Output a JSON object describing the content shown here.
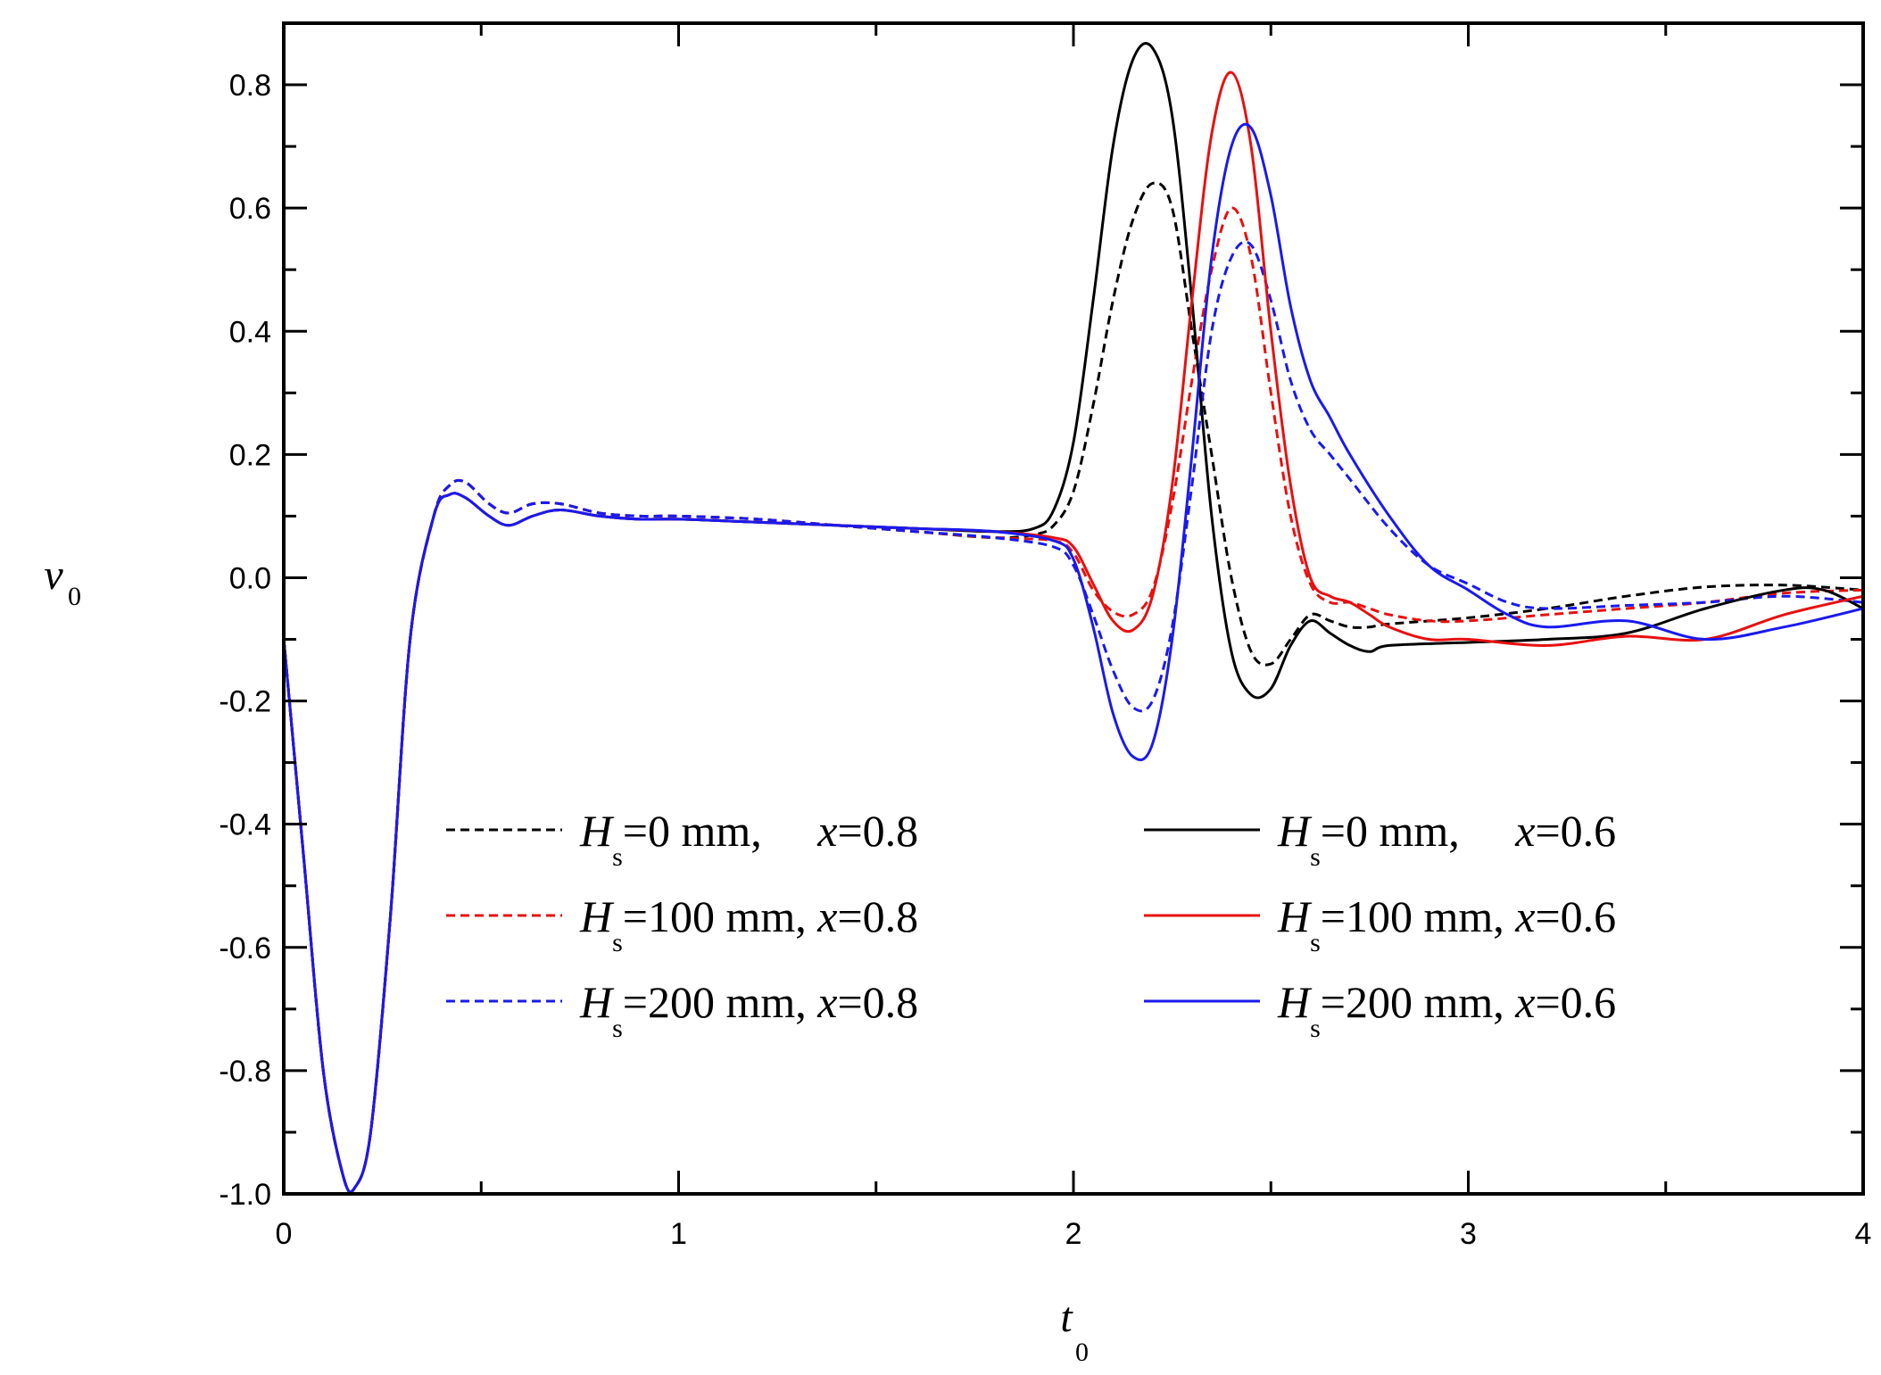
{
  "chart_data": {
    "type": "line",
    "title": "",
    "xlabel": "t",
    "xlabel_sub": "0",
    "ylabel": "v",
    "ylabel_sub": "0",
    "xlim": [
      0,
      4
    ],
    "ylim": [
      -1.0,
      0.9
    ],
    "x_ticks": [
      0,
      1,
      2,
      3,
      4
    ],
    "x_tick_labels": [
      "0",
      "1",
      "2",
      "3",
      "4"
    ],
    "y_ticks": [
      -1.0,
      -0.8,
      -0.6,
      -0.4,
      -0.2,
      0.0,
      0.2,
      0.4,
      0.6,
      0.8
    ],
    "y_tick_labels": [
      "-1.0",
      "-0.8",
      "-0.6",
      "-0.4",
      "-0.2",
      "0.0",
      "0.2",
      "0.4",
      "0.6",
      "0.8"
    ],
    "grid": false,
    "legend_position": "bottom-center",
    "series": [
      {
        "name": "Hs=0 mm, x=0.8",
        "legend": {
          "pre": "H",
          "sub": "s",
          "mid": "=0 mm, ",
          "var": "x",
          "post": "=0.8"
        },
        "color": "#000000",
        "dashed": true,
        "x": [
          0,
          0.05,
          0.1,
          0.15,
          0.18,
          0.22,
          0.27,
          0.32,
          0.38,
          0.42,
          0.46,
          0.52,
          0.57,
          0.63,
          0.7,
          0.8,
          0.9,
          1.0,
          1.2,
          1.4,
          1.6,
          1.8,
          1.9,
          1.95,
          2.0,
          2.05,
          2.1,
          2.15,
          2.2,
          2.25,
          2.3,
          2.35,
          2.4,
          2.45,
          2.5,
          2.55,
          2.6,
          2.65,
          2.7,
          2.75,
          2.8,
          3.0,
          3.2,
          3.4,
          3.6,
          3.8,
          4.0
        ],
        "y": [
          -0.1,
          -0.45,
          -0.8,
          -0.97,
          -0.99,
          -0.9,
          -0.55,
          -0.1,
          0.1,
          0.15,
          0.155,
          0.12,
          0.105,
          0.12,
          0.12,
          0.105,
          0.1,
          0.1,
          0.095,
          0.085,
          0.075,
          0.065,
          0.07,
          0.085,
          0.14,
          0.28,
          0.45,
          0.58,
          0.64,
          0.6,
          0.4,
          0.2,
          0.0,
          -0.12,
          -0.14,
          -0.1,
          -0.06,
          -0.07,
          -0.08,
          -0.08,
          -0.075,
          -0.065,
          -0.05,
          -0.03,
          -0.015,
          -0.012,
          -0.02
        ]
      },
      {
        "name": "Hs=100 mm, x=0.8",
        "legend": {
          "pre": "H",
          "sub": "s",
          "mid": "=100 mm, ",
          "var": "x",
          "post": "=0.8"
        },
        "color": "#e81010",
        "dashed": true,
        "x": [
          0,
          0.05,
          0.1,
          0.15,
          0.18,
          0.22,
          0.27,
          0.32,
          0.38,
          0.42,
          0.46,
          0.52,
          0.57,
          0.63,
          0.7,
          0.8,
          0.9,
          1.0,
          1.2,
          1.4,
          1.6,
          1.8,
          1.95,
          2.0,
          2.05,
          2.1,
          2.15,
          2.2,
          2.25,
          2.3,
          2.35,
          2.4,
          2.45,
          2.5,
          2.55,
          2.6,
          2.65,
          2.7,
          2.75,
          2.8,
          2.9,
          3.0,
          3.2,
          3.4,
          3.6,
          3.8,
          4.0
        ],
        "y": [
          -0.1,
          -0.45,
          -0.8,
          -0.97,
          -0.99,
          -0.9,
          -0.55,
          -0.1,
          0.1,
          0.15,
          0.155,
          0.12,
          0.105,
          0.12,
          0.12,
          0.105,
          0.1,
          0.1,
          0.095,
          0.085,
          0.075,
          0.065,
          0.06,
          0.04,
          -0.02,
          -0.055,
          -0.06,
          -0.02,
          0.12,
          0.32,
          0.5,
          0.6,
          0.52,
          0.3,
          0.1,
          -0.01,
          -0.04,
          -0.04,
          -0.05,
          -0.06,
          -0.07,
          -0.07,
          -0.06,
          -0.05,
          -0.04,
          -0.025,
          -0.02
        ]
      },
      {
        "name": "Hs=200 mm, x=0.8",
        "legend": {
          "pre": "H",
          "sub": "s",
          "mid": "=200 mm, ",
          "var": "x",
          "post": "=0.8"
        },
        "color": "#1a1aee",
        "dashed": true,
        "x": [
          0,
          0.05,
          0.1,
          0.15,
          0.18,
          0.22,
          0.27,
          0.32,
          0.38,
          0.42,
          0.46,
          0.52,
          0.57,
          0.63,
          0.7,
          0.8,
          0.9,
          1.0,
          1.2,
          1.4,
          1.6,
          1.8,
          1.95,
          2.0,
          2.05,
          2.1,
          2.15,
          2.2,
          2.25,
          2.3,
          2.35,
          2.4,
          2.45,
          2.5,
          2.55,
          2.6,
          2.65,
          2.7,
          2.8,
          2.9,
          3.0,
          3.1,
          3.2,
          3.4,
          3.6,
          3.8,
          4.0
        ],
        "y": [
          -0.1,
          -0.45,
          -0.8,
          -0.97,
          -0.99,
          -0.9,
          -0.55,
          -0.1,
          0.1,
          0.15,
          0.155,
          0.12,
          0.105,
          0.12,
          0.12,
          0.105,
          0.1,
          0.1,
          0.095,
          0.085,
          0.075,
          0.065,
          0.05,
          0.02,
          -0.06,
          -0.15,
          -0.21,
          -0.2,
          -0.08,
          0.15,
          0.4,
          0.52,
          0.54,
          0.45,
          0.32,
          0.24,
          0.2,
          0.16,
          0.08,
          0.02,
          -0.01,
          -0.04,
          -0.05,
          -0.045,
          -0.04,
          -0.03,
          -0.04
        ]
      },
      {
        "name": "Hs=0 mm, x=0.6",
        "legend": {
          "pre": "H",
          "sub": "s",
          "mid": "=0 mm, ",
          "var": "x",
          "post": "=0.6"
        },
        "color": "#000000",
        "dashed": false,
        "x": [
          0,
          0.05,
          0.1,
          0.15,
          0.18,
          0.22,
          0.27,
          0.32,
          0.38,
          0.42,
          0.46,
          0.52,
          0.57,
          0.63,
          0.7,
          0.8,
          0.9,
          1.0,
          1.2,
          1.4,
          1.6,
          1.8,
          1.9,
          1.95,
          2.0,
          2.05,
          2.1,
          2.15,
          2.2,
          2.25,
          2.3,
          2.35,
          2.4,
          2.45,
          2.5,
          2.55,
          2.6,
          2.65,
          2.7,
          2.75,
          2.8,
          3.0,
          3.2,
          3.4,
          3.6,
          3.8,
          3.9,
          4.0
        ],
        "y": [
          -0.1,
          -0.45,
          -0.8,
          -0.97,
          -0.99,
          -0.9,
          -0.55,
          -0.1,
          0.1,
          0.135,
          0.13,
          0.1,
          0.085,
          0.1,
          0.11,
          0.1,
          0.095,
          0.095,
          0.09,
          0.085,
          0.08,
          0.075,
          0.08,
          0.11,
          0.22,
          0.45,
          0.7,
          0.84,
          0.86,
          0.75,
          0.45,
          0.1,
          -0.12,
          -0.19,
          -0.18,
          -0.11,
          -0.07,
          -0.09,
          -0.11,
          -0.12,
          -0.11,
          -0.105,
          -0.1,
          -0.09,
          -0.05,
          -0.02,
          -0.02,
          -0.05
        ]
      },
      {
        "name": "Hs=100 mm, x=0.6",
        "legend": {
          "pre": "H",
          "sub": "s",
          "mid": "=100 mm, ",
          "var": "x",
          "post": "=0.6"
        },
        "color": "#e81010",
        "dashed": false,
        "x": [
          0,
          0.05,
          0.1,
          0.15,
          0.18,
          0.22,
          0.27,
          0.32,
          0.38,
          0.42,
          0.46,
          0.52,
          0.57,
          0.63,
          0.7,
          0.8,
          0.9,
          1.0,
          1.2,
          1.4,
          1.6,
          1.8,
          1.95,
          2.0,
          2.05,
          2.1,
          2.15,
          2.2,
          2.25,
          2.3,
          2.35,
          2.4,
          2.45,
          2.5,
          2.55,
          2.6,
          2.65,
          2.7,
          2.75,
          2.8,
          2.9,
          3.0,
          3.2,
          3.4,
          3.6,
          3.8,
          4.0
        ],
        "y": [
          -0.1,
          -0.45,
          -0.8,
          -0.97,
          -0.99,
          -0.9,
          -0.55,
          -0.1,
          0.1,
          0.135,
          0.13,
          0.1,
          0.085,
          0.1,
          0.11,
          0.1,
          0.095,
          0.095,
          0.09,
          0.085,
          0.08,
          0.075,
          0.065,
          0.05,
          -0.01,
          -0.07,
          -0.085,
          -0.03,
          0.15,
          0.45,
          0.72,
          0.82,
          0.7,
          0.4,
          0.15,
          0.0,
          -0.03,
          -0.04,
          -0.06,
          -0.08,
          -0.1,
          -0.1,
          -0.11,
          -0.095,
          -0.1,
          -0.06,
          -0.03
        ]
      },
      {
        "name": "Hs=200 mm, x=0.6",
        "legend": {
          "pre": "H",
          "sub": "s",
          "mid": "=200 mm, ",
          "var": "x",
          "post": "=0.6"
        },
        "color": "#1a1aee",
        "dashed": false,
        "x": [
          0,
          0.05,
          0.1,
          0.15,
          0.18,
          0.22,
          0.27,
          0.32,
          0.38,
          0.42,
          0.46,
          0.52,
          0.57,
          0.63,
          0.7,
          0.8,
          0.9,
          1.0,
          1.2,
          1.4,
          1.6,
          1.8,
          1.95,
          2.0,
          2.05,
          2.1,
          2.15,
          2.2,
          2.25,
          2.3,
          2.35,
          2.4,
          2.45,
          2.5,
          2.55,
          2.6,
          2.65,
          2.7,
          2.8,
          2.9,
          3.0,
          3.1,
          3.2,
          3.4,
          3.6,
          3.8,
          4.0
        ],
        "y": [
          -0.1,
          -0.45,
          -0.8,
          -0.97,
          -0.99,
          -0.9,
          -0.55,
          -0.1,
          0.1,
          0.135,
          0.13,
          0.1,
          0.085,
          0.1,
          0.11,
          0.1,
          0.095,
          0.095,
          0.09,
          0.085,
          0.08,
          0.075,
          0.06,
          0.03,
          -0.08,
          -0.22,
          -0.29,
          -0.27,
          -0.1,
          0.2,
          0.52,
          0.7,
          0.73,
          0.62,
          0.44,
          0.32,
          0.26,
          0.2,
          0.1,
          0.02,
          -0.02,
          -0.06,
          -0.08,
          -0.07,
          -0.1,
          -0.08,
          -0.05
        ]
      }
    ]
  }
}
